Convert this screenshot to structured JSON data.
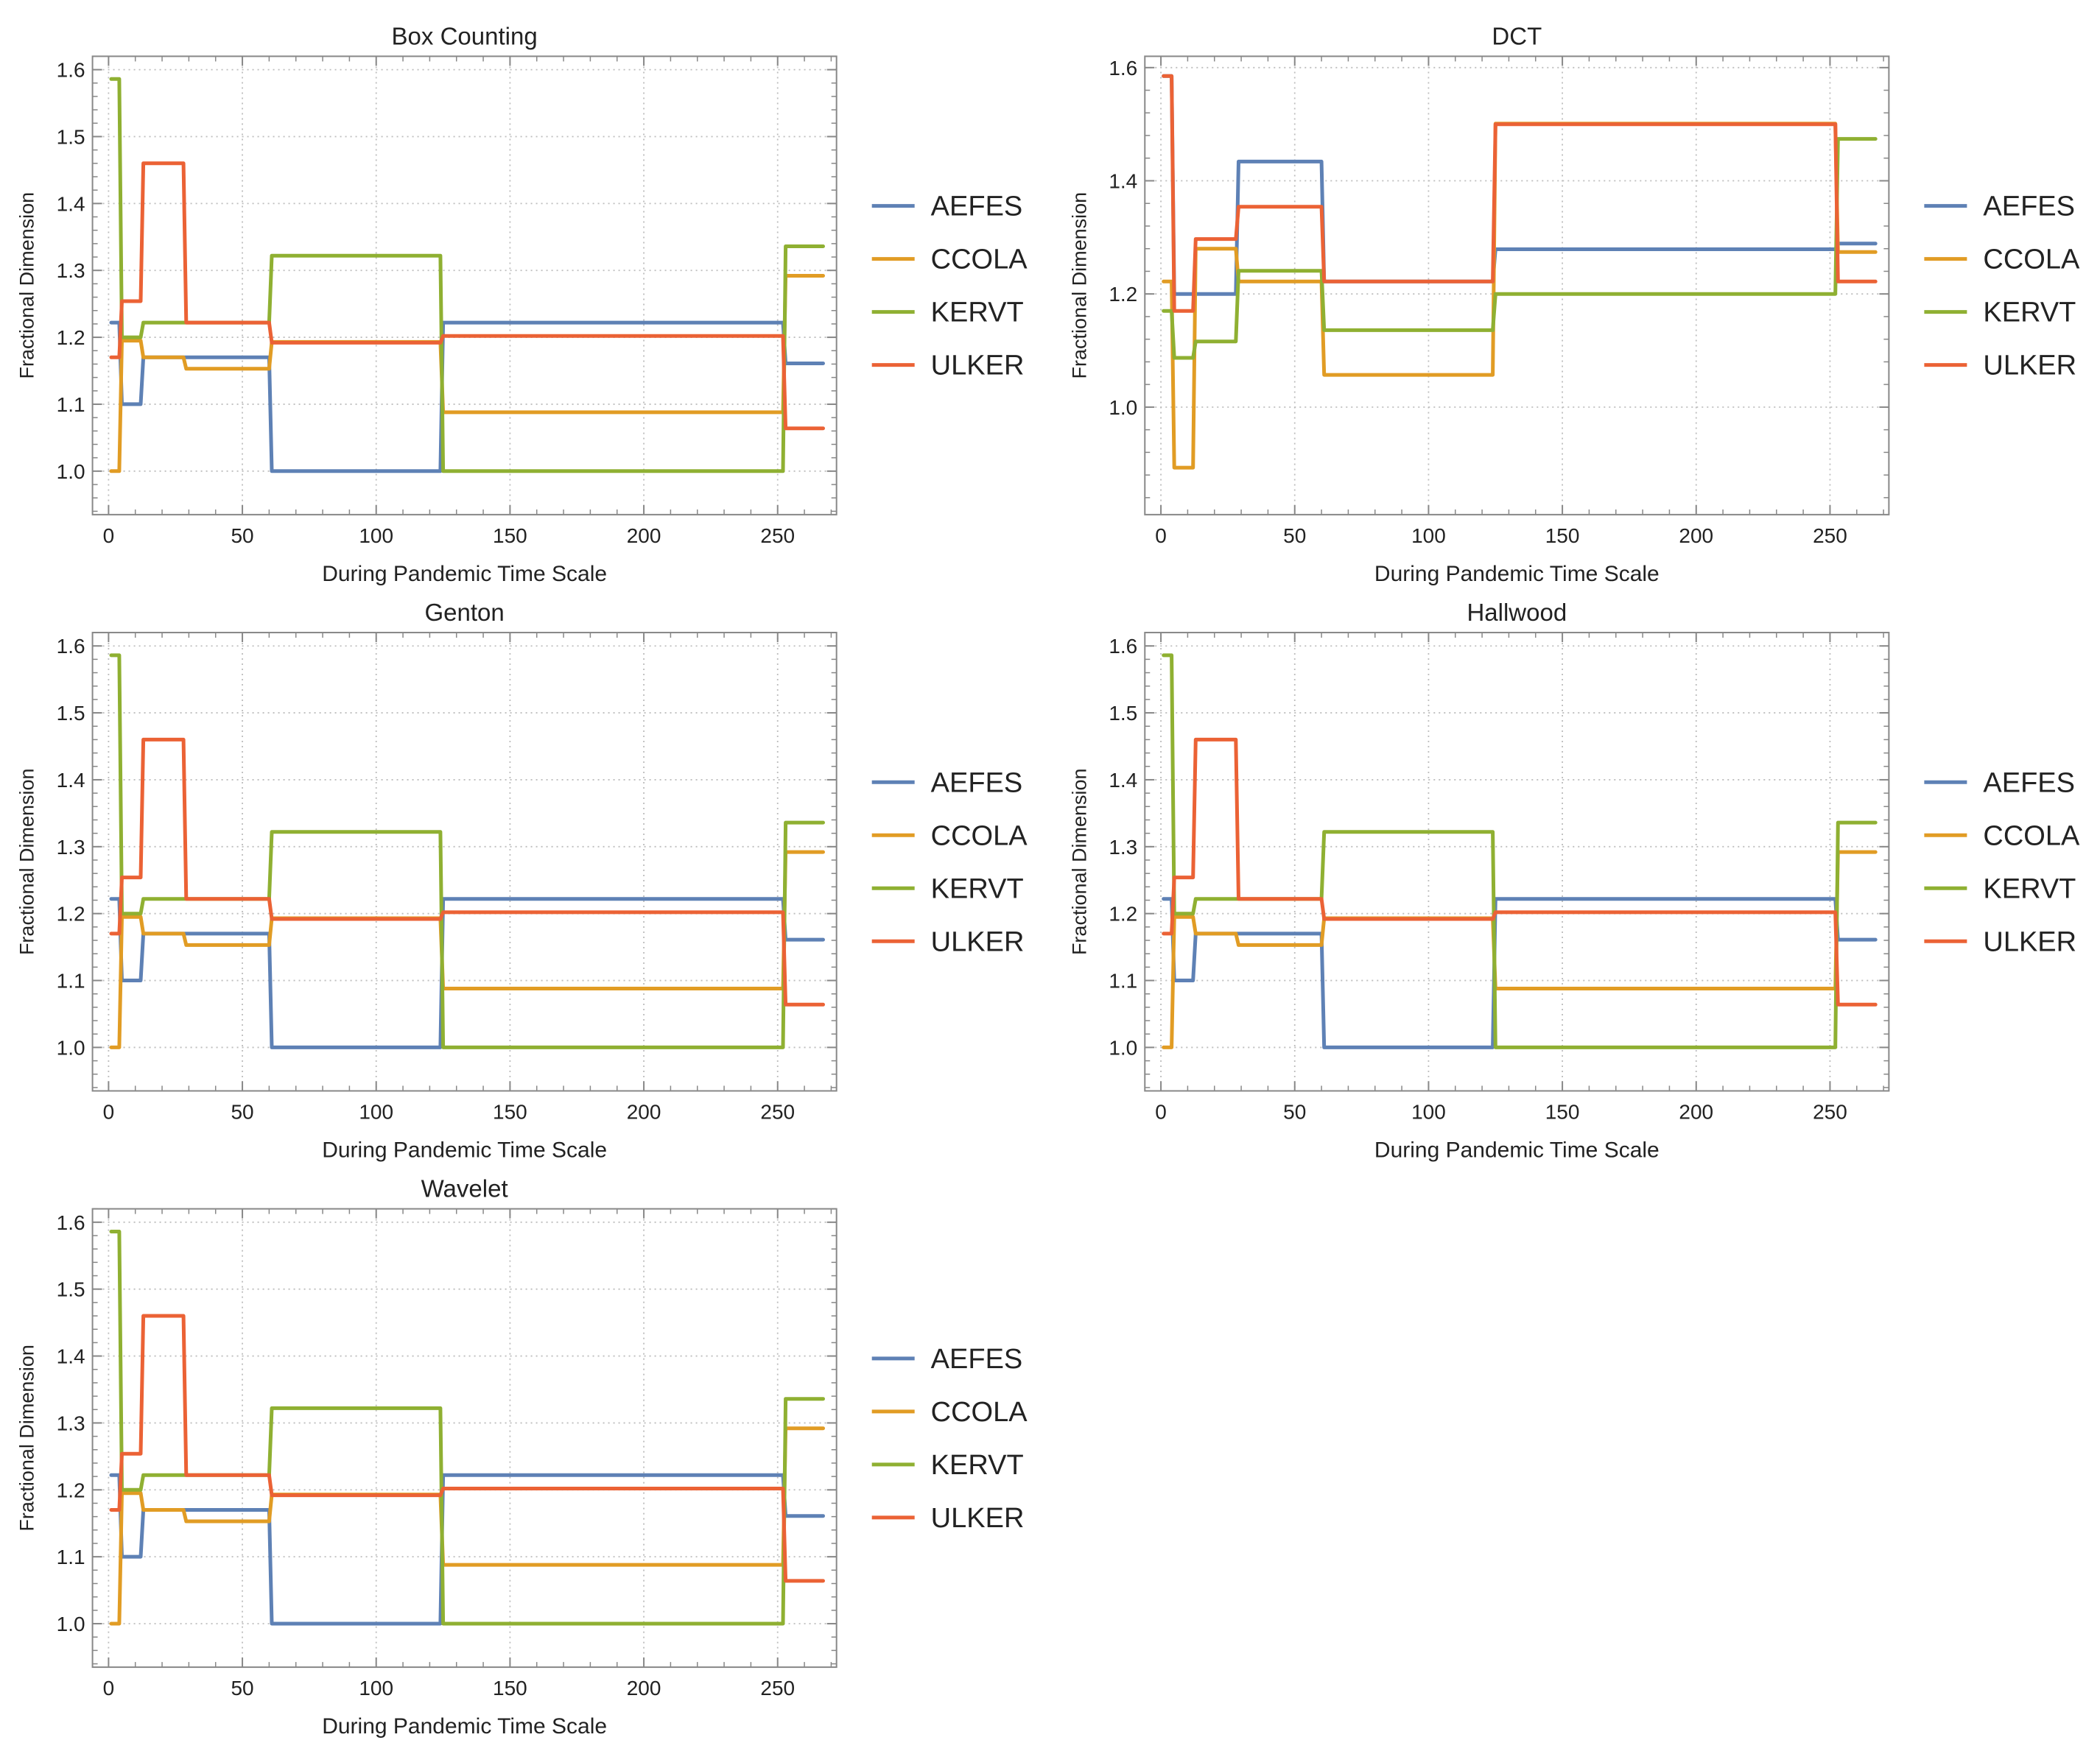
{
  "colors": {
    "AEFES": "#5E81B5",
    "CCOLA": "#E19C24",
    "KERVT": "#8FB032",
    "ULKER": "#EB6235",
    "grid": "#bdbdbd",
    "frame": "#888888",
    "text": "#222222"
  },
  "chart_data": [
    {
      "type": "line",
      "title": "Box Counting",
      "xlabel": "During Pandemic Time Scale",
      "ylabel": "Fractional Dimension",
      "xlim": [
        -6,
        272
      ],
      "ylim": [
        0.935,
        1.62
      ],
      "xticks": [
        0,
        50,
        100,
        150,
        200,
        250
      ],
      "yticks": [
        1.0,
        1.1,
        1.2,
        1.3,
        1.4,
        1.5,
        1.6
      ],
      "ytick_labels": [
        "1.0",
        "1.1",
        "1.2",
        "1.3",
        "1.4",
        "1.5",
        "1.6"
      ],
      "legend": [
        "AEFES",
        "CCOLA",
        "KERVT",
        "ULKER"
      ],
      "series": [
        {
          "name": "AEFES",
          "x": [
            1,
            4,
            5,
            12,
            13,
            60,
            61,
            124,
            125,
            252,
            253,
            267
          ],
          "y": [
            1.222,
            1.222,
            1.1,
            1.1,
            1.17,
            1.17,
            1.0,
            1.0,
            1.222,
            1.222,
            1.161,
            1.161
          ]
        },
        {
          "name": "CCOLA",
          "x": [
            1,
            4,
            5,
            12,
            13,
            28,
            29,
            60,
            61,
            124,
            125,
            252,
            253,
            267
          ],
          "y": [
            1.0,
            1.0,
            1.195,
            1.195,
            1.17,
            1.17,
            1.153,
            1.153,
            1.193,
            1.193,
            1.088,
            1.088,
            1.292,
            1.292
          ]
        },
        {
          "name": "KERVT",
          "x": [
            1,
            4,
            5,
            12,
            13,
            60,
            61,
            124,
            125,
            252,
            253,
            267
          ],
          "y": [
            1.586,
            1.586,
            1.2,
            1.2,
            1.222,
            1.222,
            1.322,
            1.322,
            1.0,
            1.0,
            1.336,
            1.336
          ]
        },
        {
          "name": "ULKER",
          "x": [
            1,
            4,
            5,
            12,
            13,
            28,
            29,
            60,
            61,
            124,
            125,
            252,
            253,
            267
          ],
          "y": [
            1.17,
            1.17,
            1.254,
            1.254,
            1.46,
            1.46,
            1.222,
            1.222,
            1.192,
            1.192,
            1.202,
            1.202,
            1.064,
            1.064
          ]
        }
      ]
    },
    {
      "type": "line",
      "title": "DCT",
      "xlabel": "During Pandemic Time Scale",
      "ylabel": "Fractional Dimension",
      "xlim": [
        -6,
        272
      ],
      "ylim": [
        0.81,
        1.62
      ],
      "xticks": [
        0,
        50,
        100,
        150,
        200,
        250
      ],
      "yticks": [
        1.0,
        1.2,
        1.4,
        1.6
      ],
      "ytick_labels": [
        "1.0",
        "1.2",
        "1.4",
        "1.6"
      ],
      "legend": [
        "AEFES",
        "CCOLA",
        "KERVT",
        "ULKER"
      ],
      "series": [
        {
          "name": "AEFES",
          "x": [
            1,
            4,
            5,
            28,
            29,
            60,
            61,
            124,
            125,
            252,
            253,
            267
          ],
          "y": [
            1.585,
            1.585,
            1.2,
            1.2,
            1.434,
            1.434,
            1.222,
            1.222,
            1.279,
            1.279,
            1.289,
            1.289
          ]
        },
        {
          "name": "CCOLA",
          "x": [
            1,
            4,
            5,
            12,
            13,
            28,
            29,
            60,
            61,
            124,
            125,
            252,
            253,
            267
          ],
          "y": [
            1.222,
            1.222,
            0.893,
            0.893,
            1.28,
            1.28,
            1.222,
            1.222,
            1.057,
            1.057,
            1.501,
            1.501,
            1.274,
            1.274
          ]
        },
        {
          "name": "KERVT",
          "x": [
            1,
            4,
            5,
            12,
            13,
            28,
            29,
            60,
            61,
            124,
            125,
            252,
            253,
            267
          ],
          "y": [
            1.17,
            1.17,
            1.087,
            1.087,
            1.116,
            1.116,
            1.241,
            1.241,
            1.136,
            1.136,
            1.2,
            1.2,
            1.474,
            1.474
          ]
        },
        {
          "name": "ULKER",
          "x": [
            1,
            4,
            5,
            12,
            13,
            28,
            29,
            60,
            61,
            124,
            125,
            252,
            253,
            267
          ],
          "y": [
            1.585,
            1.585,
            1.17,
            1.17,
            1.297,
            1.297,
            1.354,
            1.354,
            1.222,
            1.222,
            1.5,
            1.5,
            1.222,
            1.222
          ]
        }
      ]
    },
    {
      "type": "line",
      "title": "Genton",
      "xlabel": "During Pandemic Time Scale",
      "ylabel": "Fractional Dimension",
      "xlim": [
        -6,
        272
      ],
      "ylim": [
        0.935,
        1.62
      ],
      "xticks": [
        0,
        50,
        100,
        150,
        200,
        250
      ],
      "yticks": [
        1.0,
        1.1,
        1.2,
        1.3,
        1.4,
        1.5,
        1.6
      ],
      "ytick_labels": [
        "1.0",
        "1.1",
        "1.2",
        "1.3",
        "1.4",
        "1.5",
        "1.6"
      ],
      "legend": [
        "AEFES",
        "CCOLA",
        "KERVT",
        "ULKER"
      ],
      "series": [
        {
          "name": "AEFES",
          "x": [
            1,
            4,
            5,
            12,
            13,
            60,
            61,
            124,
            125,
            252,
            253,
            267
          ],
          "y": [
            1.222,
            1.222,
            1.1,
            1.1,
            1.17,
            1.17,
            1.0,
            1.0,
            1.222,
            1.222,
            1.161,
            1.161
          ]
        },
        {
          "name": "CCOLA",
          "x": [
            1,
            4,
            5,
            12,
            13,
            28,
            29,
            60,
            61,
            124,
            125,
            252,
            253,
            267
          ],
          "y": [
            1.0,
            1.0,
            1.195,
            1.195,
            1.17,
            1.17,
            1.153,
            1.153,
            1.193,
            1.193,
            1.088,
            1.088,
            1.292,
            1.292
          ]
        },
        {
          "name": "KERVT",
          "x": [
            1,
            4,
            5,
            12,
            13,
            60,
            61,
            124,
            125,
            252,
            253,
            267
          ],
          "y": [
            1.586,
            1.586,
            1.2,
            1.2,
            1.222,
            1.222,
            1.322,
            1.322,
            1.0,
            1.0,
            1.336,
            1.336
          ]
        },
        {
          "name": "ULKER",
          "x": [
            1,
            4,
            5,
            12,
            13,
            28,
            29,
            60,
            61,
            124,
            125,
            252,
            253,
            267
          ],
          "y": [
            1.17,
            1.17,
            1.254,
            1.254,
            1.46,
            1.46,
            1.222,
            1.222,
            1.192,
            1.192,
            1.202,
            1.202,
            1.064,
            1.064
          ]
        }
      ]
    },
    {
      "type": "line",
      "title": "Hallwood",
      "xlabel": "During Pandemic Time Scale",
      "ylabel": "Fractional Dimension",
      "xlim": [
        -6,
        272
      ],
      "ylim": [
        0.935,
        1.62
      ],
      "xticks": [
        0,
        50,
        100,
        150,
        200,
        250
      ],
      "yticks": [
        1.0,
        1.1,
        1.2,
        1.3,
        1.4,
        1.5,
        1.6
      ],
      "ytick_labels": [
        "1.0",
        "1.1",
        "1.2",
        "1.3",
        "1.4",
        "1.5",
        "1.6"
      ],
      "legend": [
        "AEFES",
        "CCOLA",
        "KERVT",
        "ULKER"
      ],
      "series": [
        {
          "name": "AEFES",
          "x": [
            1,
            4,
            5,
            12,
            13,
            60,
            61,
            124,
            125,
            252,
            253,
            267
          ],
          "y": [
            1.222,
            1.222,
            1.1,
            1.1,
            1.17,
            1.17,
            1.0,
            1.0,
            1.222,
            1.222,
            1.161,
            1.161
          ]
        },
        {
          "name": "CCOLA",
          "x": [
            1,
            4,
            5,
            12,
            13,
            28,
            29,
            60,
            61,
            124,
            125,
            252,
            253,
            267
          ],
          "y": [
            1.0,
            1.0,
            1.195,
            1.195,
            1.17,
            1.17,
            1.153,
            1.153,
            1.193,
            1.193,
            1.088,
            1.088,
            1.292,
            1.292
          ]
        },
        {
          "name": "KERVT",
          "x": [
            1,
            4,
            5,
            12,
            13,
            60,
            61,
            124,
            125,
            252,
            253,
            267
          ],
          "y": [
            1.586,
            1.586,
            1.2,
            1.2,
            1.222,
            1.222,
            1.322,
            1.322,
            1.0,
            1.0,
            1.336,
            1.336
          ]
        },
        {
          "name": "ULKER",
          "x": [
            1,
            4,
            5,
            12,
            13,
            28,
            29,
            60,
            61,
            124,
            125,
            252,
            253,
            267
          ],
          "y": [
            1.17,
            1.17,
            1.254,
            1.254,
            1.46,
            1.46,
            1.222,
            1.222,
            1.192,
            1.192,
            1.202,
            1.202,
            1.064,
            1.064
          ]
        }
      ]
    },
    {
      "type": "line",
      "title": "Wavelet",
      "xlabel": "During Pandemic Time Scale",
      "ylabel": "Fractional Dimension",
      "xlim": [
        -6,
        272
      ],
      "ylim": [
        0.935,
        1.62
      ],
      "xticks": [
        0,
        50,
        100,
        150,
        200,
        250
      ],
      "yticks": [
        1.0,
        1.1,
        1.2,
        1.3,
        1.4,
        1.5,
        1.6
      ],
      "ytick_labels": [
        "1.0",
        "1.1",
        "1.2",
        "1.3",
        "1.4",
        "1.5",
        "1.6"
      ],
      "legend": [
        "AEFES",
        "CCOLA",
        "KERVT",
        "ULKER"
      ],
      "series": [
        {
          "name": "AEFES",
          "x": [
            1,
            4,
            5,
            12,
            13,
            60,
            61,
            124,
            125,
            252,
            253,
            267
          ],
          "y": [
            1.222,
            1.222,
            1.1,
            1.1,
            1.17,
            1.17,
            1.0,
            1.0,
            1.222,
            1.222,
            1.161,
            1.161
          ]
        },
        {
          "name": "CCOLA",
          "x": [
            1,
            4,
            5,
            12,
            13,
            28,
            29,
            60,
            61,
            124,
            125,
            252,
            253,
            267
          ],
          "y": [
            1.0,
            1.0,
            1.195,
            1.195,
            1.17,
            1.17,
            1.153,
            1.153,
            1.193,
            1.193,
            1.088,
            1.088,
            1.292,
            1.292
          ]
        },
        {
          "name": "KERVT",
          "x": [
            1,
            4,
            5,
            12,
            13,
            60,
            61,
            124,
            125,
            252,
            253,
            267
          ],
          "y": [
            1.586,
            1.586,
            1.2,
            1.2,
            1.222,
            1.222,
            1.322,
            1.322,
            1.0,
            1.0,
            1.336,
            1.336
          ]
        },
        {
          "name": "ULKER",
          "x": [
            1,
            4,
            5,
            12,
            13,
            28,
            29,
            60,
            61,
            124,
            125,
            252,
            253,
            267
          ],
          "y": [
            1.17,
            1.17,
            1.254,
            1.254,
            1.46,
            1.46,
            1.222,
            1.222,
            1.192,
            1.192,
            1.202,
            1.202,
            1.064,
            1.064
          ]
        }
      ]
    }
  ]
}
